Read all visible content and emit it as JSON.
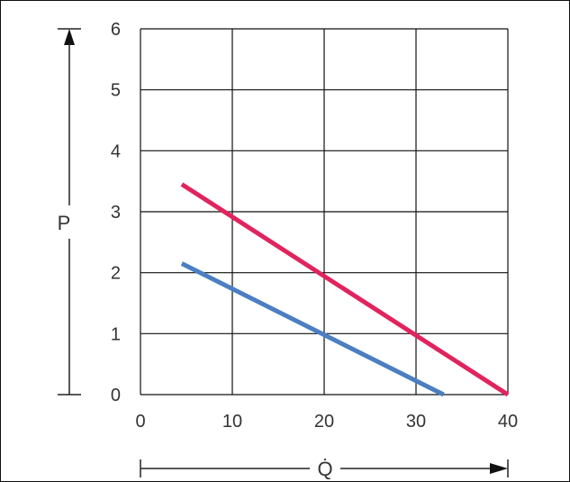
{
  "chart_data": {
    "type": "line",
    "title": "",
    "xlabel": "Q̇",
    "ylabel": "P",
    "xlim": [
      0,
      40
    ],
    "ylim": [
      0,
      6
    ],
    "x_ticks": [
      "0",
      "10",
      "20",
      "30",
      "40"
    ],
    "y_ticks": [
      "0",
      "1",
      "2",
      "3",
      "4",
      "5",
      "6"
    ],
    "grid": true,
    "legend": "none",
    "series": [
      {
        "color": "#e0245e",
        "x": [
          4.5,
          40
        ],
        "y": [
          3.45,
          0
        ]
      },
      {
        "color": "#4a7fc1",
        "x": [
          4.5,
          33
        ],
        "y": [
          2.15,
          0
        ]
      }
    ],
    "colors": {
      "grid": "#111111",
      "text": "#333333"
    }
  }
}
